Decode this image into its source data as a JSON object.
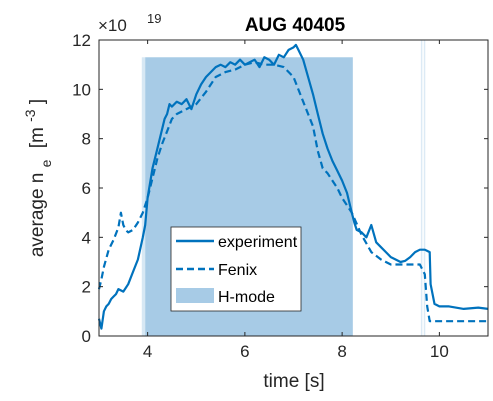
{
  "chart_data": {
    "type": "line",
    "title": "AUG 40405",
    "xlabel": "time [s]",
    "ylabel_main": "average n",
    "ylabel_sub": "e",
    "ylabel_units": "[m",
    "ylabel_exp": "-3",
    "ylabel_close": "]",
    "y_multiplier_base": "×10",
    "y_multiplier_exp": "19",
    "xlim": [
      3,
      11
    ],
    "ylim": [
      0,
      12
    ],
    "x_ticks": [
      "4",
      "6",
      "8",
      "10"
    ],
    "x_tick_values": [
      4,
      6,
      8,
      10
    ],
    "y_ticks": [
      "0",
      "2",
      "4",
      "6",
      "8",
      "10",
      "12"
    ],
    "y_tick_values": [
      0,
      2,
      4,
      6,
      8,
      10,
      12
    ],
    "grid": false,
    "legend_position": "bottom-center",
    "shaded_regions": [
      {
        "x0": 3.88,
        "x1": 3.95,
        "ymax": 11.3,
        "opacity": 0.45
      },
      {
        "x0": 3.95,
        "x1": 8.22,
        "ymax": 11.3,
        "opacity": 1.0
      },
      {
        "x0": 9.62,
        "x1": 9.65,
        "ymax": 12,
        "opacity": 0.4
      },
      {
        "x0": 9.68,
        "x1": 9.71,
        "ymax": 12,
        "opacity": 0.4
      }
    ],
    "series": [
      {
        "name": "experiment",
        "style": "solid",
        "color": "#0072BD",
        "x": [
          3.0,
          3.05,
          3.1,
          3.15,
          3.2,
          3.25,
          3.3,
          3.35,
          3.4,
          3.5,
          3.6,
          3.7,
          3.8,
          3.9,
          3.95,
          4.0,
          4.1,
          4.2,
          4.3,
          4.35,
          4.4,
          4.45,
          4.5,
          4.6,
          4.7,
          4.8,
          4.9,
          5.0,
          5.1,
          5.2,
          5.3,
          5.4,
          5.5,
          5.6,
          5.7,
          5.8,
          5.9,
          6.0,
          6.1,
          6.2,
          6.3,
          6.4,
          6.5,
          6.6,
          6.7,
          6.8,
          6.9,
          7.0,
          7.05,
          7.1,
          7.2,
          7.3,
          7.4,
          7.5,
          7.6,
          7.7,
          7.8,
          7.9,
          8.0,
          8.1,
          8.2,
          8.25,
          8.3,
          8.4,
          8.5,
          8.6,
          8.7,
          8.8,
          8.9,
          9.0,
          9.1,
          9.2,
          9.3,
          9.4,
          9.5,
          9.6,
          9.7,
          9.75,
          9.8,
          9.82,
          9.9,
          10.0,
          10.2,
          10.5,
          10.8,
          11.0
        ],
        "y": [
          0.7,
          0.3,
          1.0,
          1.2,
          1.3,
          1.5,
          1.6,
          1.7,
          1.9,
          1.8,
          2.1,
          2.6,
          3.1,
          4.0,
          4.5,
          5.6,
          6.8,
          7.6,
          8.4,
          8.8,
          9.0,
          9.4,
          9.3,
          9.5,
          9.4,
          9.6,
          9.2,
          9.8,
          10.2,
          10.5,
          10.7,
          10.9,
          11.0,
          10.9,
          11.1,
          11.0,
          11.2,
          11.0,
          11.1,
          11.2,
          10.9,
          11.3,
          11.2,
          11.0,
          11.4,
          11.3,
          11.6,
          11.7,
          11.8,
          11.6,
          11.2,
          10.5,
          9.8,
          9.0,
          8.2,
          7.6,
          7.1,
          6.7,
          6.3,
          5.8,
          5.0,
          4.6,
          4.3,
          4.2,
          4.0,
          4.5,
          3.8,
          3.6,
          3.4,
          3.2,
          3.1,
          3.0,
          3.05,
          3.2,
          3.4,
          3.5,
          3.5,
          3.45,
          3.4,
          2.1,
          1.3,
          1.2,
          1.2,
          1.1,
          1.15,
          1.1
        ]
      },
      {
        "name": "Fenix",
        "style": "dashed",
        "color": "#0072BD",
        "x": [
          3.0,
          3.05,
          3.1,
          3.2,
          3.3,
          3.4,
          3.45,
          3.5,
          3.55,
          3.6,
          3.7,
          3.8,
          3.9,
          4.0,
          4.1,
          4.2,
          4.3,
          4.4,
          4.5,
          4.6,
          4.8,
          5.0,
          5.2,
          5.4,
          5.6,
          5.8,
          6.0,
          6.2,
          6.4,
          6.6,
          6.8,
          7.0,
          7.2,
          7.4,
          7.5,
          7.6,
          7.7,
          7.8,
          7.9,
          8.0,
          8.2,
          8.4,
          8.6,
          8.8,
          9.0,
          9.2,
          9.4,
          9.6,
          9.7,
          9.75,
          9.8,
          10.0,
          10.5,
          11.0
        ],
        "y": [
          1.9,
          2.3,
          2.8,
          3.5,
          3.9,
          4.4,
          5.0,
          4.5,
          4.3,
          4.2,
          4.3,
          4.6,
          5.0,
          5.6,
          6.4,
          7.2,
          7.8,
          8.3,
          8.8,
          9.0,
          9.2,
          9.4,
          9.9,
          10.5,
          10.7,
          10.8,
          11.0,
          11.1,
          11.0,
          11.0,
          10.9,
          10.5,
          9.5,
          8.5,
          7.5,
          6.8,
          6.6,
          6.3,
          6.0,
          5.6,
          5.0,
          4.1,
          3.4,
          3.1,
          2.9,
          2.9,
          2.9,
          2.9,
          2.5,
          1.2,
          0.6,
          0.6,
          0.6,
          0.6
        ]
      }
    ],
    "legend": [
      {
        "label": "experiment",
        "kind": "solid"
      },
      {
        "label": "Fenix",
        "kind": "dashed"
      },
      {
        "label": "H-mode",
        "kind": "patch"
      }
    ],
    "colors": {
      "line": "#0072BD",
      "shade": "#a7cbe6",
      "axis": "#262626"
    }
  }
}
